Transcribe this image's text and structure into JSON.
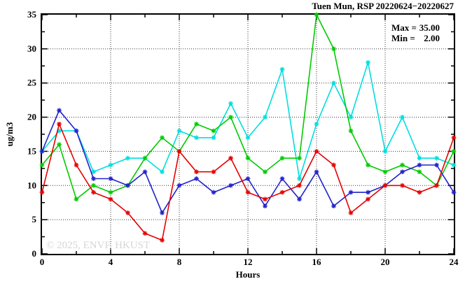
{
  "title": "Tuen Mun, RSP 20220624−20220627",
  "legend": {
    "max_label": "Max =",
    "max_value": "35.00",
    "min_label": "Min =",
    "min_value": "2.00"
  },
  "watermark": "© 2025, ENVF, HKUST",
  "chart_data": {
    "type": "line",
    "title": "Tuen Mun, RSP 20220624−20220627",
    "xlabel": "Hours",
    "ylabel": "ug/m3",
    "xlim": [
      0,
      24
    ],
    "ylim": [
      0,
      35
    ],
    "x_major_ticks": [
      0,
      4,
      8,
      12,
      16,
      20,
      24
    ],
    "x_minor_ticks": [
      2,
      6,
      10,
      14,
      18,
      22
    ],
    "y_major_ticks": [
      0,
      5,
      10,
      15,
      20,
      25,
      30,
      35
    ],
    "y_minor_ticks": [
      2.5,
      7.5,
      12.5,
      17.5,
      22.5,
      27.5,
      32.5
    ],
    "x_grid": [
      4,
      8,
      12,
      16,
      20
    ],
    "y_grid": [
      5,
      10,
      15,
      20,
      25,
      30
    ],
    "grid": true,
    "legend_position": "top-right",
    "stat_max": 35.0,
    "stat_min": 2.0,
    "x": [
      0,
      1,
      2,
      3,
      4,
      5,
      6,
      7,
      8,
      9,
      10,
      11,
      12,
      13,
      14,
      15,
      16,
      17,
      18,
      19,
      20,
      21,
      22,
      23,
      24
    ],
    "series": [
      {
        "name": "cyan",
        "color": "#00dede",
        "values": [
          15,
          18,
          18,
          12,
          13,
          14,
          14,
          12,
          18,
          17,
          17,
          22,
          17,
          20,
          27,
          11,
          19,
          25,
          20,
          28,
          15,
          20,
          14,
          14,
          13
        ]
      },
      {
        "name": "green",
        "color": "#00cc00",
        "values": [
          13,
          16,
          8,
          10,
          9,
          10,
          14,
          17,
          15,
          19,
          18,
          20,
          14,
          12,
          14,
          14,
          35,
          30,
          18,
          13,
          12,
          13,
          12,
          10,
          15
        ]
      },
      {
        "name": "blue",
        "color": "#2222cc",
        "values": [
          15,
          21,
          18,
          11,
          11,
          10,
          12,
          6,
          10,
          11,
          9,
          10,
          11,
          7,
          11,
          8,
          12,
          7,
          9,
          9,
          10,
          12,
          13,
          13,
          9
        ]
      },
      {
        "name": "red",
        "color": "#e60000",
        "values": [
          9,
          19,
          13,
          9,
          8,
          6,
          3,
          2,
          15,
          12,
          12,
          14,
          9,
          8,
          9,
          10,
          15,
          13,
          6,
          8,
          10,
          10,
          9,
          10,
          17
        ]
      }
    ],
    "axis_color": "#000000",
    "grid_color": "#333333"
  }
}
